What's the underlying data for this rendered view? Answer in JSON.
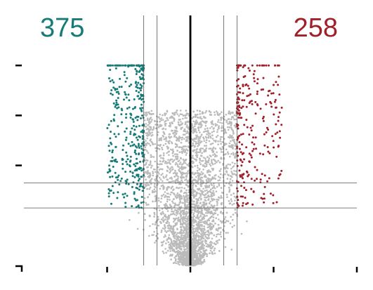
{
  "chart_data": {
    "type": "scatter",
    "title": "",
    "xlabel": "",
    "ylabel": "",
    "counts": {
      "down": "375",
      "up": "258"
    },
    "xlim": [
      -1,
      1
    ],
    "ylim": [
      0,
      1
    ],
    "center_line_x": 0,
    "vertical_thresholds": [
      -0.28,
      -0.2,
      0.2,
      0.28
    ],
    "horizontal_thresholds": [
      0.23,
      0.33
    ],
    "y_cap": 0.8,
    "colors": {
      "down": "#167a76",
      "up": "#a0202a",
      "nonsignificant": "#bbbbbb",
      "center_line": "#000000",
      "threshold_lines": "#555555"
    },
    "series": [
      {
        "name": "",
        "color_key": "down",
        "point_count": 375
      },
      {
        "name": "",
        "color_key": "up",
        "point_count": 258
      },
      {
        "name": "",
        "color_key": "nonsignificant"
      }
    ],
    "grid": false,
    "legend": "none"
  }
}
